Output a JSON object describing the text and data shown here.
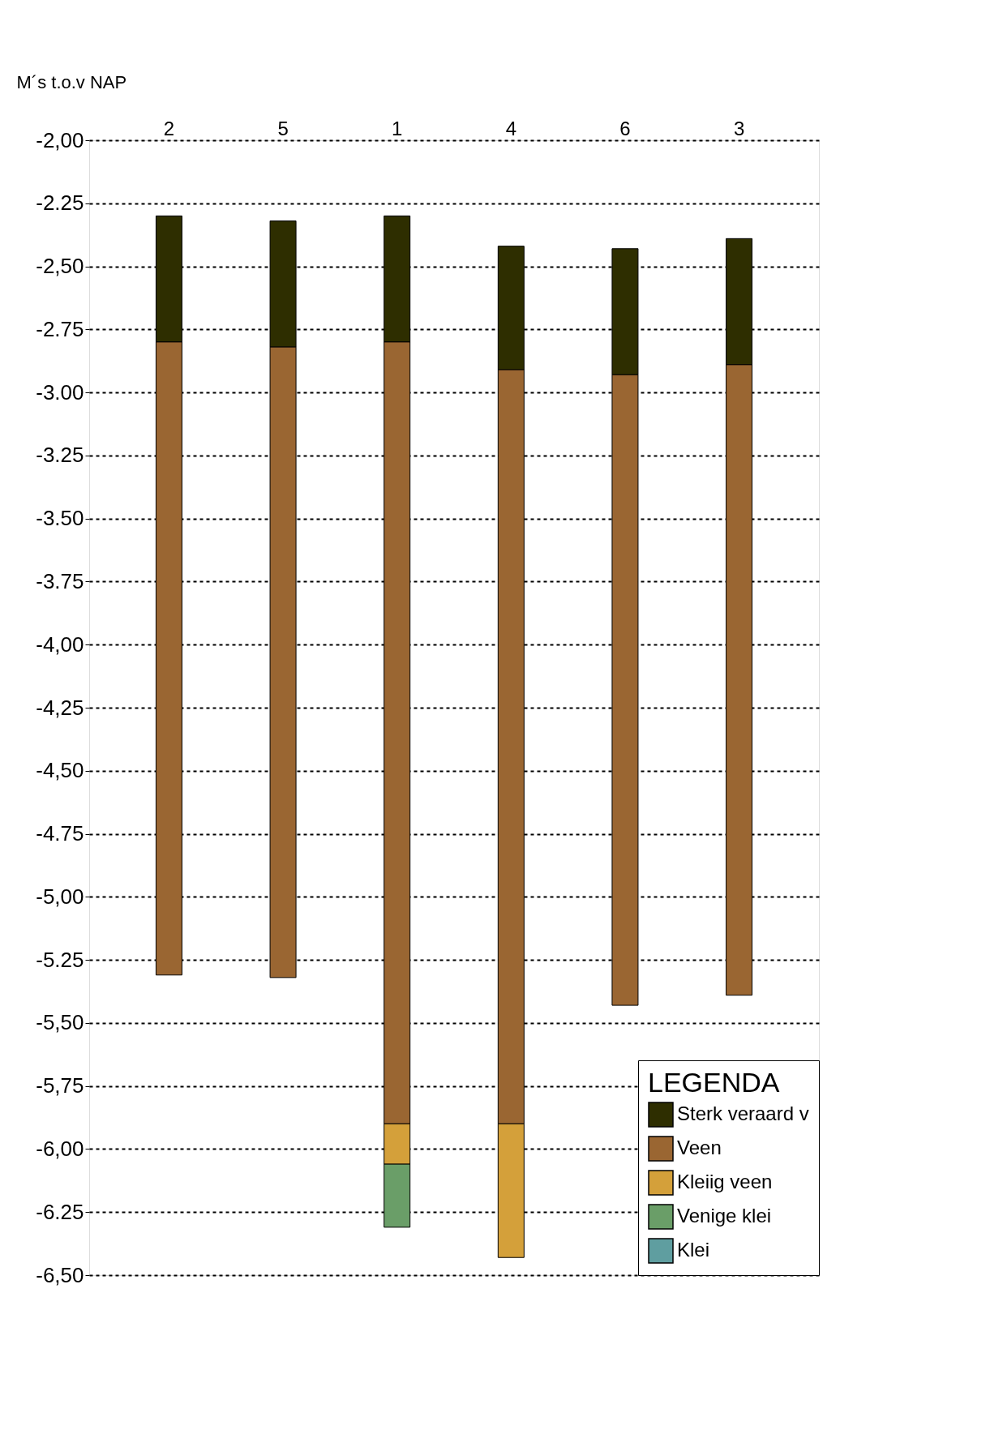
{
  "chart_data": {
    "type": "bar",
    "ylabel": "M´s t.o.v NAP",
    "legend_title": "LEGENDA",
    "legend": "bottom right",
    "grid": "y",
    "line_style": "dashed",
    "categories": [
      "2",
      "5",
      "1",
      "4",
      "6",
      "3"
    ],
    "series": [
      {
        "name": "Sterk veraard v",
        "color": "#2e2e00",
        "base": [
          -2.3,
          -2.32,
          -2.3,
          -2.42,
          -2.43,
          -2.39
        ],
        "values": [
          -0.5,
          -0.5,
          -0.5,
          -0.49,
          -0.5,
          -0.5
        ]
      },
      {
        "name": "Veen",
        "color": "#9a6632",
        "base": [
          -2.8,
          -2.82,
          -2.8,
          -2.91,
          -2.93,
          -2.89
        ],
        "values": [
          -2.51,
          -2.5,
          -3.1,
          -2.99,
          -2.5,
          -2.5
        ]
      },
      {
        "name": "Kleiig veen",
        "color": "#d4a03a",
        "base": [
          null,
          null,
          -5.9,
          -5.9,
          null,
          null
        ],
        "values": [
          null,
          null,
          -0.16,
          -0.53,
          null,
          null
        ]
      },
      {
        "name": "Venige klei",
        "color": "#6a9e68",
        "base": [
          null,
          null,
          -6.06,
          null,
          null,
          null
        ],
        "values": [
          null,
          null,
          -0.25,
          null,
          null,
          null
        ]
      },
      {
        "name": "Klei",
        "color": "#5f9ea0",
        "base": [
          null,
          null,
          null,
          null,
          null,
          null
        ],
        "values": [
          null,
          null,
          null,
          null,
          null,
          null
        ]
      }
    ],
    "ylim": [
      -6.5,
      -2.0
    ],
    "yticks": [
      {
        "value": -2.0,
        "label": "-2,00"
      },
      {
        "value": -2.25,
        "label": "-2.25"
      },
      {
        "value": -2.5,
        "label": "-2,50"
      },
      {
        "value": -2.75,
        "label": "-2.75"
      },
      {
        "value": -3.0,
        "label": "-3.00"
      },
      {
        "value": -3.25,
        "label": "-3.25"
      },
      {
        "value": -3.5,
        "label": "-3.50"
      },
      {
        "value": -3.75,
        "label": "-3.75"
      },
      {
        "value": -4.0,
        "label": "-4,00"
      },
      {
        "value": -4.25,
        "label": "-4,25"
      },
      {
        "value": -4.5,
        "label": "-4,50"
      },
      {
        "value": -4.75,
        "label": "-4.75"
      },
      {
        "value": -5.0,
        "label": "-5,00"
      },
      {
        "value": -5.25,
        "label": "-5.25"
      },
      {
        "value": -5.5,
        "label": "-5,50"
      },
      {
        "value": -5.75,
        "label": "-5,75"
      },
      {
        "value": -6.0,
        "label": "-6,00"
      },
      {
        "value": -6.25,
        "label": "-6.25"
      },
      {
        "value": -6.5,
        "label": "-6,50"
      }
    ]
  }
}
